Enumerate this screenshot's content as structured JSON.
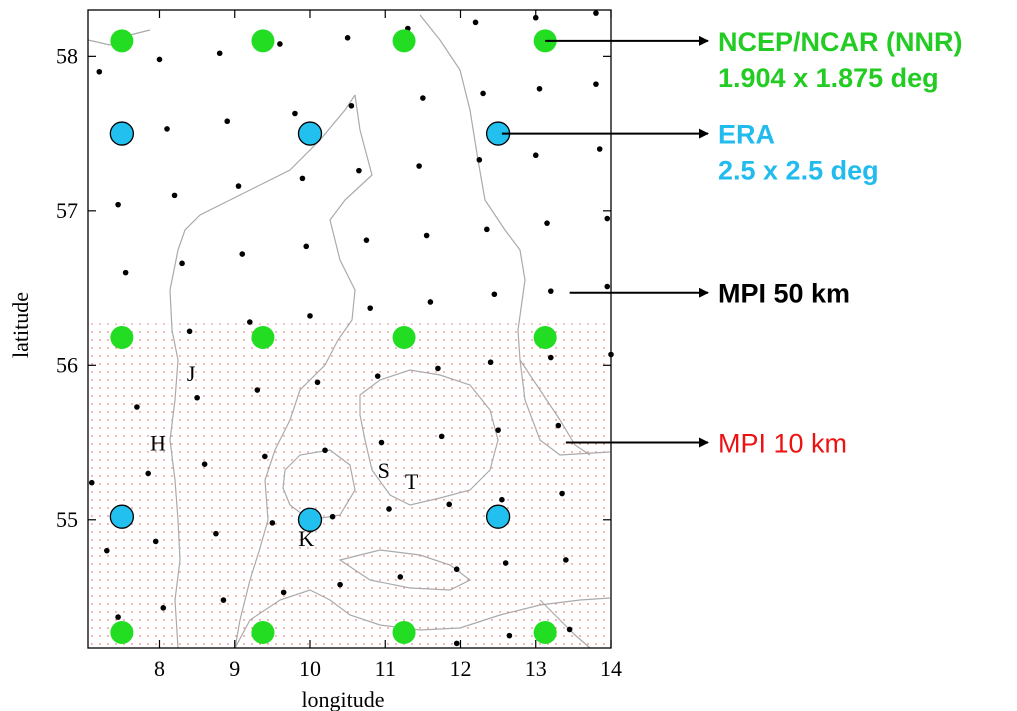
{
  "chart_data": {
    "type": "scatter",
    "xlabel": "longitude",
    "ylabel": "latitude",
    "xlim": [
      7.05,
      14.0
    ],
    "ylim": [
      54.17,
      58.3
    ],
    "xticks": [
      8,
      9,
      10,
      11,
      12,
      13,
      14
    ],
    "yticks": [
      55,
      56,
      57,
      58
    ],
    "grid": false,
    "series": [
      {
        "name": "NCEP/NCAR (NNR)",
        "subtitle": "1.904 x 1.875 deg",
        "color": "#22dd22",
        "marker": "circle-large",
        "points": [
          [
            7.5,
            58.1
          ],
          [
            9.375,
            58.1
          ],
          [
            11.25,
            58.1
          ],
          [
            13.125,
            58.1
          ],
          [
            7.5,
            56.18
          ],
          [
            9.375,
            56.18
          ],
          [
            11.25,
            56.18
          ],
          [
            13.125,
            56.18
          ],
          [
            7.5,
            54.27
          ],
          [
            9.375,
            54.27
          ],
          [
            11.25,
            54.27
          ],
          [
            13.125,
            54.27
          ]
        ]
      },
      {
        "name": "ERA",
        "subtitle": "2.5 x 2.5 deg",
        "color": "#22c0ee",
        "marker": "circle-large-outlined",
        "points": [
          [
            7.5,
            57.5
          ],
          [
            10.0,
            57.5
          ],
          [
            12.5,
            57.5
          ],
          [
            7.5,
            55.02
          ],
          [
            10.0,
            55.0
          ],
          [
            12.5,
            55.02
          ]
        ]
      },
      {
        "name": "MPI 50 km",
        "color": "#000000",
        "marker": "dot",
        "points": [
          [
            7.2,
            57.9
          ],
          [
            8.0,
            57.98
          ],
          [
            8.8,
            58.02
          ],
          [
            9.6,
            58.08
          ],
          [
            10.5,
            58.12
          ],
          [
            11.3,
            58.18
          ],
          [
            12.2,
            58.22
          ],
          [
            13.0,
            58.25
          ],
          [
            13.8,
            58.28
          ],
          [
            7.4,
            57.48
          ],
          [
            8.1,
            57.53
          ],
          [
            8.9,
            57.58
          ],
          [
            9.8,
            57.63
          ],
          [
            10.55,
            57.68
          ],
          [
            11.5,
            57.73
          ],
          [
            12.3,
            57.76
          ],
          [
            13.05,
            57.79
          ],
          [
            13.8,
            57.82
          ],
          [
            7.45,
            57.04
          ],
          [
            8.2,
            57.1
          ],
          [
            9.05,
            57.16
          ],
          [
            9.9,
            57.21
          ],
          [
            10.65,
            57.26
          ],
          [
            11.45,
            57.29
          ],
          [
            12.25,
            57.33
          ],
          [
            13.0,
            57.36
          ],
          [
            13.85,
            57.4
          ],
          [
            7.55,
            56.6
          ],
          [
            8.3,
            56.66
          ],
          [
            9.1,
            56.72
          ],
          [
            9.95,
            56.77
          ],
          [
            10.75,
            56.81
          ],
          [
            11.55,
            56.84
          ],
          [
            12.35,
            56.88
          ],
          [
            13.15,
            56.92
          ],
          [
            13.95,
            56.95
          ],
          [
            7.6,
            56.17
          ],
          [
            8.4,
            56.22
          ],
          [
            9.2,
            56.28
          ],
          [
            10.0,
            56.32
          ],
          [
            10.8,
            56.37
          ],
          [
            11.6,
            56.41
          ],
          [
            12.45,
            56.46
          ],
          [
            13.2,
            56.48
          ],
          [
            13.95,
            56.51
          ],
          [
            7.7,
            55.73
          ],
          [
            8.5,
            55.79
          ],
          [
            9.3,
            55.84
          ],
          [
            10.1,
            55.89
          ],
          [
            10.9,
            55.93
          ],
          [
            11.7,
            55.98
          ],
          [
            12.4,
            56.02
          ],
          [
            13.2,
            56.05
          ],
          [
            14.0,
            56.07
          ],
          [
            7.85,
            55.3
          ],
          [
            8.6,
            55.36
          ],
          [
            9.4,
            55.41
          ],
          [
            10.2,
            55.45
          ],
          [
            10.95,
            55.5
          ],
          [
            11.75,
            55.54
          ],
          [
            12.5,
            55.58
          ],
          [
            13.3,
            55.61
          ],
          [
            7.1,
            55.24
          ],
          [
            7.95,
            54.86
          ],
          [
            8.75,
            54.91
          ],
          [
            9.5,
            54.98
          ],
          [
            10.3,
            55.02
          ],
          [
            11.05,
            55.07
          ],
          [
            11.85,
            55.1
          ],
          [
            12.55,
            55.13
          ],
          [
            13.35,
            55.17
          ],
          [
            7.3,
            54.8
          ],
          [
            8.05,
            54.43
          ],
          [
            8.85,
            54.48
          ],
          [
            9.65,
            54.53
          ],
          [
            10.4,
            54.58
          ],
          [
            11.2,
            54.63
          ],
          [
            11.95,
            54.68
          ],
          [
            12.6,
            54.72
          ],
          [
            13.4,
            54.74
          ],
          [
            7.45,
            54.37
          ],
          [
            11.95,
            54.2
          ],
          [
            12.65,
            54.25
          ],
          [
            13.45,
            54.29
          ]
        ]
      }
    ],
    "regions": [
      {
        "name": "MPI 10 km",
        "color": "#ee2222",
        "lat_top": 56.27
      }
    ],
    "place_labels": [
      {
        "text": "J",
        "lon": 8.42,
        "lat": 55.9
      },
      {
        "text": "H",
        "lon": 7.98,
        "lat": 55.45
      },
      {
        "text": "S",
        "lon": 10.98,
        "lat": 55.27
      },
      {
        "text": "T",
        "lon": 11.35,
        "lat": 55.2
      },
      {
        "text": "K",
        "lon": 9.95,
        "lat": 54.83
      }
    ],
    "annotations": [
      {
        "line1": "NCEP/NCAR (NNR)",
        "line2": "1.904 x 1.875 deg",
        "color": "#22cc22",
        "from": [
          13.125,
          58.1
        ]
      },
      {
        "line1": "ERA",
        "line2": "2.5 x 2.5 deg",
        "color": "#22bbee",
        "from": [
          12.55,
          57.5
        ]
      },
      {
        "line1": "MPI 50 km",
        "line2": "",
        "color": "#000000",
        "from": [
          13.45,
          56.47
        ]
      },
      {
        "line1": "MPI 10 km",
        "line2": "",
        "color": "#ee1111",
        "from": [
          13.4,
          55.5
        ]
      }
    ]
  }
}
